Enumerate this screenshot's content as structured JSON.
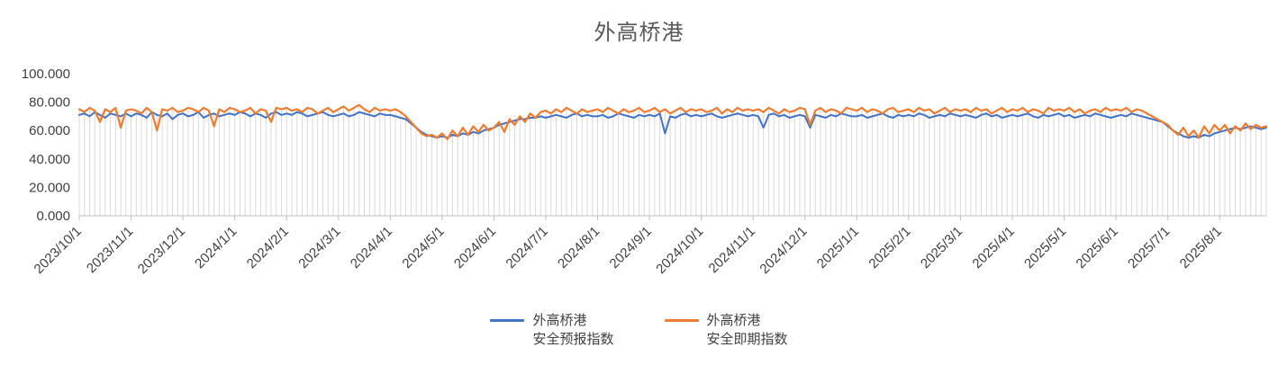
{
  "chart_data": {
    "type": "line",
    "title": "外高桥港",
    "ylim": [
      0,
      100
    ],
    "y_tick_labels": [
      "0.000",
      "20.000",
      "40.000",
      "60.000",
      "80.000",
      "100.000"
    ],
    "x_tick_labels": [
      "2023/10/1",
      "2023/11/1",
      "2023/12/1",
      "2024/1/1",
      "2024/2/1",
      "2024/3/1",
      "2024/4/1",
      "2024/5/1",
      "2024/6/1",
      "2024/7/1",
      "2024/8/1",
      "2024/9/1",
      "2024/10/1",
      "2024/11/1",
      "2024/12/1",
      "2025/1/1",
      "2025/2/1",
      "2025/3/1",
      "2025/4/1",
      "2025/5/1",
      "2025/6/1",
      "2025/7/1",
      "2025/8/1"
    ],
    "points_per_month": 10,
    "droplines_color": "#D9D9D9",
    "axis_color": "#BFBFBF",
    "title_color": "#595959",
    "label_color": "#404040",
    "series": [
      {
        "name": "外高桥港 安全预报指数",
        "color": "#4472C4",
        "values": [
          71,
          72,
          70,
          73,
          71,
          69,
          72,
          71,
          70,
          72,
          70,
          72,
          71,
          69,
          73,
          71,
          70,
          72,
          68,
          71,
          72,
          70,
          71,
          73,
          69,
          71,
          72,
          70,
          71,
          72,
          71,
          73,
          72,
          70,
          72,
          71,
          69,
          72,
          73,
          71,
          72,
          71,
          73,
          72,
          70,
          71,
          72,
          73,
          71,
          70,
          71,
          72,
          70,
          71,
          73,
          72,
          71,
          70,
          72,
          71,
          71,
          70,
          69,
          68,
          65,
          62,
          59,
          57,
          56,
          55,
          56,
          55,
          57,
          56,
          58,
          57,
          59,
          58,
          60,
          61,
          62,
          64,
          65,
          66,
          67,
          68,
          68,
          69,
          69,
          70,
          69,
          70,
          71,
          70,
          69,
          71,
          72,
          70,
          71,
          70,
          70,
          71,
          69,
          70,
          72,
          71,
          70,
          69,
          71,
          70,
          71,
          70,
          72,
          58,
          70,
          69,
          71,
          72,
          70,
          71,
          70,
          71,
          72,
          70,
          69,
          70,
          71,
          72,
          71,
          70,
          71,
          70,
          62,
          71,
          72,
          70,
          71,
          69,
          70,
          71,
          70,
          62,
          71,
          70,
          69,
          71,
          70,
          72,
          71,
          70,
          70,
          71,
          69,
          70,
          71,
          72,
          70,
          69,
          71,
          70,
          71,
          70,
          72,
          71,
          69,
          70,
          71,
          70,
          72,
          71,
          70,
          71,
          70,
          69,
          71,
          72,
          70,
          71,
          69,
          70,
          71,
          70,
          71,
          72,
          70,
          69,
          71,
          70,
          71,
          72,
          70,
          71,
          69,
          70,
          71,
          70,
          72,
          71,
          70,
          69,
          70,
          71,
          70,
          72,
          71,
          70,
          69,
          68,
          67,
          66,
          63,
          60,
          58,
          56,
          55,
          56,
          55,
          57,
          56,
          58,
          59,
          60,
          61,
          62,
          61,
          62,
          63,
          62,
          61,
          62
        ]
      },
      {
        "name": "外高桥港 安全即期指数",
        "color": "#ED7D31",
        "values": [
          75,
          73,
          76,
          74,
          66,
          75,
          73,
          76,
          62,
          74,
          75,
          74,
          72,
          76,
          73,
          60,
          75,
          74,
          76,
          73,
          74,
          76,
          75,
          73,
          76,
          74,
          63,
          75,
          73,
          76,
          75,
          73,
          74,
          76,
          72,
          75,
          74,
          66,
          76,
          75,
          76,
          74,
          75,
          73,
          76,
          75,
          72,
          74,
          76,
          73,
          75,
          77,
          74,
          76,
          78,
          75,
          73,
          76,
          74,
          75,
          74,
          75,
          73,
          70,
          66,
          62,
          58,
          56,
          57,
          55,
          58,
          54,
          60,
          56,
          62,
          57,
          63,
          59,
          64,
          60,
          62,
          66,
          59,
          68,
          64,
          70,
          66,
          72,
          69,
          73,
          74,
          72,
          75,
          73,
          76,
          74,
          72,
          75,
          73,
          74,
          75,
          73,
          76,
          74,
          72,
          75,
          73,
          74,
          76,
          73,
          74,
          76,
          73,
          75,
          72,
          74,
          76,
          73,
          75,
          74,
          75,
          73,
          74,
          76,
          72,
          75,
          73,
          76,
          74,
          75,
          74,
          75,
          73,
          76,
          74,
          72,
          75,
          73,
          74,
          76,
          75,
          64,
          74,
          76,
          73,
          75,
          74,
          72,
          76,
          75,
          74,
          76,
          73,
          75,
          74,
          72,
          75,
          76,
          73,
          74,
          75,
          73,
          76,
          74,
          75,
          72,
          74,
          76,
          73,
          75,
          74,
          75,
          73,
          76,
          74,
          75,
          72,
          74,
          76,
          73,
          75,
          74,
          76,
          73,
          75,
          74,
          72,
          76,
          74,
          75,
          74,
          76,
          73,
          75,
          72,
          74,
          75,
          73,
          76,
          74,
          75,
          74,
          76,
          73,
          75,
          74,
          72,
          70,
          68,
          66,
          64,
          60,
          57,
          62,
          56,
          60,
          55,
          63,
          58,
          64,
          60,
          64,
          58,
          63,
          60,
          65,
          61,
          64,
          62,
          63
        ]
      }
    ],
    "legend": [
      {
        "line1": "外高桥港",
        "line2": "安全预报指数",
        "color": "#4472C4"
      },
      {
        "line1": "外高桥港",
        "line2": "安全即期指数",
        "color": "#ED7D31"
      }
    ]
  }
}
